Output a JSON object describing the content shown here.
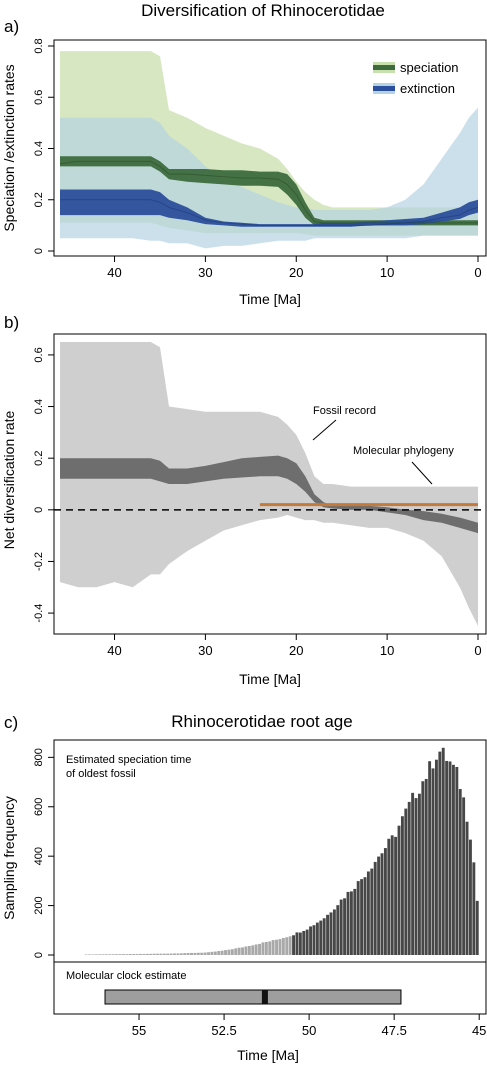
{
  "panels": {
    "a": {
      "letter": "a)",
      "title": "Diversification of Rhinocerotidae",
      "xlabel": "Time [Ma]",
      "ylabel": "Speciation /extinction rates",
      "legend": [
        {
          "label": "speciation",
          "color": "#3d6b3d"
        },
        {
          "label": "extinction",
          "color": "#2b4f9c"
        }
      ]
    },
    "b": {
      "letter": "b)",
      "title": "",
      "xlabel": "Time [Ma]",
      "ylabel": "Net diversification rate",
      "annotations": {
        "fossil": "Fossil record",
        "molecular": "Molecular phylogeny"
      }
    },
    "c": {
      "letter": "c)",
      "title": "Rhinocerotidae root age",
      "xlabel": "Time [Ma]",
      "ylabel": "Sampling frequency",
      "hist_note_line1": "Estimated speciation  time",
      "hist_note_line2": "of oldest fossil",
      "clock_label": "Molecular clock estimate"
    }
  },
  "chart_data": [
    {
      "type": "area",
      "panel": "a",
      "title": "Diversification of Rhinocerotidae",
      "xlabel": "Time [Ma]",
      "ylabel": "Speciation /extinction rates",
      "xlim": [
        46,
        0
      ],
      "ylim": [
        0,
        0.8
      ],
      "x_ticks": [
        40,
        30,
        20,
        10,
        0
      ],
      "y_ticks": [
        0,
        0.2,
        0.4,
        0.6,
        0.8
      ],
      "legend_position": "top-right",
      "x": [
        46,
        44,
        42,
        40,
        38,
        36,
        35,
        34,
        32,
        30,
        28,
        26,
        24,
        22,
        21,
        20,
        19,
        18,
        17,
        16,
        14,
        12,
        10,
        8,
        6,
        4,
        2,
        1,
        0
      ],
      "series": [
        {
          "name": "speciation",
          "color": "#3d6b3d",
          "outer_color": "#c8dfae",
          "median": [
            0.34,
            0.35,
            0.35,
            0.35,
            0.35,
            0.35,
            0.33,
            0.3,
            0.3,
            0.295,
            0.29,
            0.285,
            0.285,
            0.28,
            0.26,
            0.22,
            0.16,
            0.115,
            0.11,
            0.11,
            0.11,
            0.11,
            0.11,
            0.11,
            0.11,
            0.11,
            0.11,
            0.11,
            0.11
          ],
          "inner_lower": [
            0.33,
            0.33,
            0.33,
            0.33,
            0.33,
            0.33,
            0.31,
            0.28,
            0.27,
            0.265,
            0.26,
            0.255,
            0.255,
            0.25,
            0.22,
            0.18,
            0.13,
            0.1,
            0.1,
            0.1,
            0.1,
            0.1,
            0.1,
            0.1,
            0.1,
            0.1,
            0.1,
            0.1,
            0.1
          ],
          "inner_upper": [
            0.37,
            0.37,
            0.37,
            0.37,
            0.37,
            0.37,
            0.35,
            0.32,
            0.32,
            0.32,
            0.315,
            0.315,
            0.31,
            0.31,
            0.3,
            0.26,
            0.19,
            0.13,
            0.12,
            0.12,
            0.12,
            0.12,
            0.12,
            0.12,
            0.12,
            0.12,
            0.12,
            0.12,
            0.12
          ],
          "lower": [
            0.11,
            0.11,
            0.11,
            0.11,
            0.11,
            0.11,
            0.1,
            0.09,
            0.08,
            0.07,
            0.07,
            0.07,
            0.07,
            0.07,
            0.07,
            0.07,
            0.065,
            0.06,
            0.06,
            0.06,
            0.06,
            0.06,
            0.06,
            0.06,
            0.06,
            0.06,
            0.06,
            0.06,
            0.06
          ],
          "upper": [
            0.78,
            0.78,
            0.78,
            0.78,
            0.78,
            0.78,
            0.76,
            0.55,
            0.52,
            0.48,
            0.45,
            0.42,
            0.4,
            0.36,
            0.32,
            0.27,
            0.23,
            0.2,
            0.18,
            0.17,
            0.17,
            0.17,
            0.17,
            0.17,
            0.17,
            0.17,
            0.17,
            0.17,
            0.17
          ]
        },
        {
          "name": "extinction",
          "color": "#2b4f9c",
          "outer_color": "#b5d3e3",
          "median": [
            0.2,
            0.2,
            0.2,
            0.2,
            0.2,
            0.2,
            0.19,
            0.17,
            0.15,
            0.12,
            0.11,
            0.105,
            0.1,
            0.1,
            0.1,
            0.1,
            0.1,
            0.1,
            0.1,
            0.1,
            0.1,
            0.1,
            0.105,
            0.11,
            0.115,
            0.13,
            0.14,
            0.16,
            0.17
          ],
          "inner_lower": [
            0.14,
            0.14,
            0.14,
            0.14,
            0.14,
            0.14,
            0.14,
            0.13,
            0.12,
            0.105,
            0.1,
            0.095,
            0.095,
            0.095,
            0.095,
            0.095,
            0.095,
            0.095,
            0.095,
            0.095,
            0.095,
            0.1,
            0.1,
            0.1,
            0.105,
            0.115,
            0.125,
            0.14,
            0.15
          ],
          "inner_upper": [
            0.24,
            0.24,
            0.24,
            0.24,
            0.24,
            0.24,
            0.23,
            0.2,
            0.17,
            0.13,
            0.115,
            0.11,
            0.105,
            0.105,
            0.105,
            0.105,
            0.105,
            0.105,
            0.11,
            0.11,
            0.11,
            0.115,
            0.12,
            0.125,
            0.13,
            0.15,
            0.17,
            0.19,
            0.2
          ],
          "lower": [
            0.05,
            0.05,
            0.05,
            0.05,
            0.05,
            0.04,
            0.04,
            0.03,
            0.03,
            0.01,
            0.02,
            0.02,
            0.03,
            0.04,
            0.04,
            0.04,
            0.04,
            0.05,
            0.05,
            0.05,
            0.05,
            0.05,
            0.05,
            0.05,
            0.06,
            0.06,
            0.06,
            0.06,
            0.06
          ],
          "upper": [
            0.52,
            0.52,
            0.52,
            0.52,
            0.52,
            0.52,
            0.5,
            0.45,
            0.4,
            0.33,
            0.28,
            0.25,
            0.22,
            0.19,
            0.18,
            0.17,
            0.17,
            0.16,
            0.16,
            0.16,
            0.16,
            0.16,
            0.17,
            0.2,
            0.26,
            0.36,
            0.46,
            0.52,
            0.56
          ]
        }
      ]
    },
    {
      "type": "area",
      "panel": "b",
      "xlabel": "Time [Ma]",
      "ylabel": "Net diversification rate",
      "xlim": [
        46,
        0
      ],
      "ylim": [
        -0.45,
        0.65
      ],
      "x_ticks": [
        40,
        30,
        20,
        10,
        0
      ],
      "y_ticks": [
        -0.4,
        -0.2,
        0,
        0.2,
        0.4,
        0.6
      ],
      "x": [
        46,
        44,
        42,
        40,
        38,
        36,
        35,
        34,
        32,
        30,
        28,
        26,
        24,
        22,
        21,
        20,
        19,
        18,
        17,
        16,
        14,
        12,
        10,
        8,
        6,
        4,
        2,
        1,
        0
      ],
      "net_rate": {
        "median": [
          0.16,
          0.16,
          0.16,
          0.16,
          0.16,
          0.16,
          0.15,
          0.13,
          0.13,
          0.14,
          0.15,
          0.16,
          0.17,
          0.17,
          0.16,
          0.14,
          0.1,
          0.05,
          0.02,
          0.01,
          0.01,
          0.01,
          0.0,
          -0.01,
          -0.02,
          -0.03,
          -0.05,
          -0.06,
          -0.07
        ],
        "inner_lower": [
          0.12,
          0.12,
          0.12,
          0.12,
          0.12,
          0.12,
          0.11,
          0.1,
          0.1,
          0.11,
          0.12,
          0.125,
          0.13,
          0.13,
          0.12,
          0.1,
          0.07,
          0.03,
          0.01,
          0.005,
          0.0,
          0.0,
          -0.01,
          -0.02,
          -0.04,
          -0.05,
          -0.07,
          -0.08,
          -0.09
        ],
        "inner_upper": [
          0.2,
          0.2,
          0.2,
          0.2,
          0.2,
          0.2,
          0.19,
          0.16,
          0.16,
          0.17,
          0.185,
          0.2,
          0.205,
          0.21,
          0.2,
          0.18,
          0.13,
          0.06,
          0.03,
          0.015,
          0.015,
          0.015,
          0.01,
          0.0,
          -0.005,
          -0.015,
          -0.03,
          -0.04,
          -0.05
        ],
        "lower": [
          -0.28,
          -0.3,
          -0.3,
          -0.28,
          -0.3,
          -0.25,
          -0.25,
          -0.21,
          -0.16,
          -0.12,
          -0.08,
          -0.06,
          -0.04,
          -0.03,
          -0.02,
          -0.03,
          -0.04,
          -0.04,
          -0.05,
          -0.05,
          -0.06,
          -0.07,
          -0.07,
          -0.09,
          -0.12,
          -0.18,
          -0.3,
          -0.38,
          -0.45
        ],
        "upper": [
          0.65,
          0.65,
          0.65,
          0.65,
          0.65,
          0.65,
          0.63,
          0.4,
          0.39,
          0.38,
          0.38,
          0.38,
          0.38,
          0.36,
          0.33,
          0.29,
          0.22,
          0.13,
          0.1,
          0.1,
          0.09,
          0.09,
          0.09,
          0.09,
          0.09,
          0.09,
          0.09,
          0.09,
          0.09
        ]
      },
      "fossil_record": {
        "x_range": [
          24,
          0
        ],
        "y": 0.02,
        "color": "#c47a3a"
      },
      "zero_line": 0
    },
    {
      "type": "bar",
      "panel": "c",
      "title": "Rhinocerotidae root age",
      "xlabel": "Time [Ma]",
      "ylabel": "Sampling frequency",
      "xlim": [
        57.5,
        44.8
      ],
      "ylim": [
        0,
        850
      ],
      "x_ticks": [
        55,
        52.5,
        50,
        47.5,
        45
      ],
      "y_ticks": [
        0,
        200,
        400,
        600,
        800
      ],
      "bin_width": 0.1,
      "peak": [
        46.2,
        830
      ],
      "gray_light_until": 50.5,
      "molecular_clock": {
        "range": [
          56.0,
          47.3
        ],
        "point": 51.3
      }
    }
  ]
}
